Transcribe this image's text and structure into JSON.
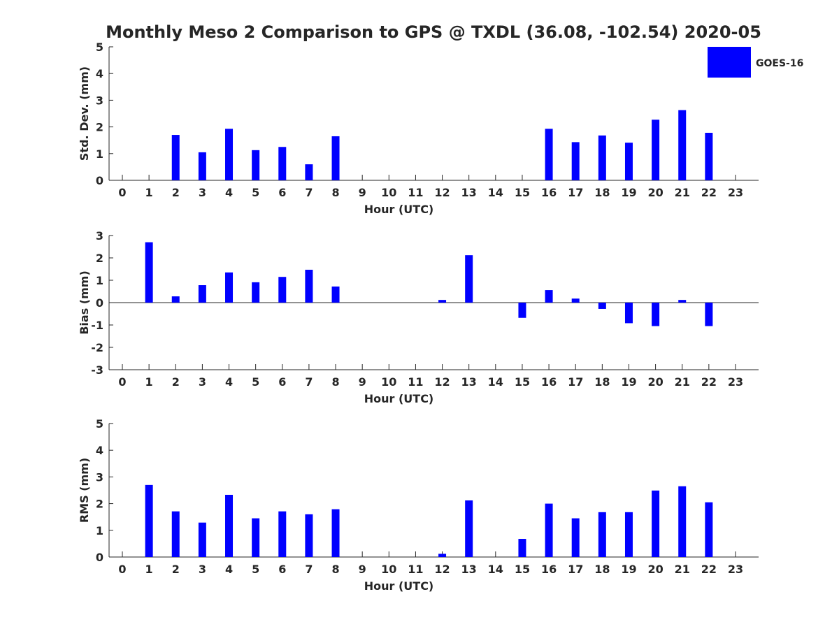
{
  "title": "Monthly Meso 2 Comparison to GPS @ TXDL (36.08, -102.54) 2020-05",
  "legend": {
    "label": "GOES-16",
    "color": "#0000ff",
    "placement": "top-right"
  },
  "chart_data": [
    {
      "type": "bar",
      "title": "Monthly Meso 2 Comparison to GPS @ TXDL (36.08, -102.54) 2020-05",
      "xlabel": "Hour (UTC)",
      "ylabel": "Std. Dev. (mm)",
      "categories": [
        "0",
        "1",
        "2",
        "3",
        "4",
        "5",
        "6",
        "7",
        "8",
        "9",
        "10",
        "11",
        "12",
        "13",
        "14",
        "15",
        "16",
        "17",
        "18",
        "19",
        "20",
        "21",
        "22",
        "23"
      ],
      "series": [
        {
          "name": "GOES-16",
          "color": "#0000ff",
          "values": [
            null,
            null,
            1.7,
            1.05,
            1.93,
            1.13,
            1.25,
            0.6,
            1.65,
            null,
            null,
            null,
            null,
            null,
            null,
            null,
            1.93,
            1.43,
            1.68,
            1.41,
            2.27,
            2.63,
            1.78,
            null
          ]
        }
      ],
      "ylim": [
        0,
        5
      ],
      "yticks": [
        "0",
        "1",
        "2",
        "3",
        "4",
        "5"
      ],
      "grid": false
    },
    {
      "type": "bar",
      "xlabel": "Hour (UTC)",
      "ylabel": "Bias (mm)",
      "categories": [
        "0",
        "1",
        "2",
        "3",
        "4",
        "5",
        "6",
        "7",
        "8",
        "9",
        "10",
        "11",
        "12",
        "13",
        "14",
        "15",
        "16",
        "17",
        "18",
        "19",
        "20",
        "21",
        "22",
        "23"
      ],
      "series": [
        {
          "name": "GOES-16",
          "color": "#0000ff",
          "values": [
            null,
            2.7,
            0.28,
            0.78,
            1.35,
            0.91,
            1.15,
            1.47,
            0.72,
            null,
            null,
            null,
            0.12,
            2.12,
            null,
            -0.68,
            0.56,
            0.18,
            -0.28,
            -0.92,
            -1.05,
            0.12,
            -1.05,
            null
          ]
        }
      ],
      "ylim": [
        -3,
        3
      ],
      "yticks": [
        "-3",
        "-2",
        "-1",
        "0",
        "1",
        "2",
        "3"
      ],
      "grid": false
    },
    {
      "type": "bar",
      "xlabel": "Hour (UTC)",
      "ylabel": "RMS (mm)",
      "categories": [
        "0",
        "1",
        "2",
        "3",
        "4",
        "5",
        "6",
        "7",
        "8",
        "9",
        "10",
        "11",
        "12",
        "13",
        "14",
        "15",
        "16",
        "17",
        "18",
        "19",
        "20",
        "21",
        "22",
        "23"
      ],
      "series": [
        {
          "name": "GOES-16",
          "color": "#0000ff",
          "values": [
            null,
            2.7,
            1.71,
            1.29,
            2.33,
            1.45,
            1.71,
            1.6,
            1.79,
            null,
            null,
            null,
            0.12,
            2.12,
            null,
            0.68,
            2.0,
            1.45,
            1.68,
            1.68,
            2.49,
            2.65,
            2.05,
            null
          ]
        }
      ],
      "ylim": [
        0,
        5
      ],
      "yticks": [
        "0",
        "1",
        "2",
        "3",
        "4",
        "5"
      ],
      "grid": false
    }
  ]
}
